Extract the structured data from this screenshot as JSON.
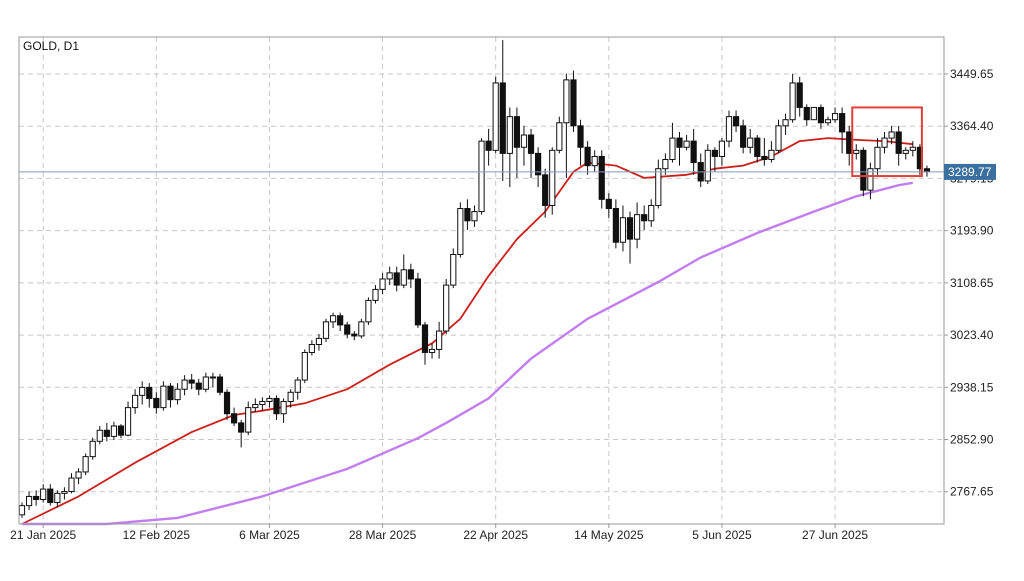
{
  "chart_data": {
    "type": "candlestick",
    "title": "GOLD, D1",
    "symbol": "GOLD",
    "timeframe": "D1",
    "grid": true,
    "y_ticks": [
      3449.65,
      3364.4,
      3279.15,
      3193.9,
      3108.65,
      3023.4,
      2938.15,
      2852.9,
      2767.65
    ],
    "y_tick_labels": [
      "3449.65",
      "3364.40",
      "3279.15",
      "3193.90",
      "3108.65",
      "3023.40",
      "2938.15",
      "2852.90",
      "2767.65"
    ],
    "ylim": [
      2715.0,
      3510.0
    ],
    "x_tick_labels": [
      {
        "label": "21 Jan 2025",
        "index": 3
      },
      {
        "label": "12 Feb 2025",
        "index": 19
      },
      {
        "label": "6 Mar 2025",
        "index": 35
      },
      {
        "label": "28 Mar 2025",
        "index": 51
      },
      {
        "label": "22 Apr 2025",
        "index": 67
      },
      {
        "label": "14 May 2025",
        "index": 83
      },
      {
        "label": "5 Jun 2025",
        "index": 99
      },
      {
        "label": "27 Jun 2025",
        "index": 115
      }
    ],
    "current_price": 3289.77,
    "current_price_label": "3289.77",
    "candles": [
      [
        2730,
        2745,
        2725,
        2750
      ],
      [
        2745,
        2760,
        2738,
        2768
      ],
      [
        2760,
        2755,
        2745,
        2770
      ],
      [
        2755,
        2772,
        2750,
        2780
      ],
      [
        2772,
        2750,
        2745,
        2780
      ],
      [
        2750,
        2765,
        2742,
        2770
      ],
      [
        2765,
        2768,
        2755,
        2775
      ],
      [
        2768,
        2790,
        2765,
        2798
      ],
      [
        2790,
        2800,
        2780,
        2806
      ],
      [
        2800,
        2825,
        2795,
        2830
      ],
      [
        2825,
        2850,
        2820,
        2856
      ],
      [
        2850,
        2868,
        2845,
        2875
      ],
      [
        2868,
        2858,
        2850,
        2880
      ],
      [
        2858,
        2875,
        2852,
        2882
      ],
      [
        2875,
        2860,
        2855,
        2878
      ],
      [
        2860,
        2905,
        2858,
        2915
      ],
      [
        2905,
        2925,
        2895,
        2935
      ],
      [
        2925,
        2938,
        2910,
        2948
      ],
      [
        2938,
        2920,
        2905,
        2945
      ],
      [
        2920,
        2905,
        2895,
        2930
      ],
      [
        2905,
        2940,
        2900,
        2948
      ],
      [
        2940,
        2918,
        2905,
        2945
      ],
      [
        2918,
        2935,
        2910,
        2945
      ],
      [
        2935,
        2950,
        2925,
        2958
      ],
      [
        2950,
        2945,
        2935,
        2960
      ],
      [
        2945,
        2935,
        2925,
        2952
      ],
      [
        2935,
        2955,
        2930,
        2962
      ],
      [
        2955,
        2955,
        2938,
        2962
      ],
      [
        2955,
        2930,
        2925,
        2960
      ],
      [
        2930,
        2895,
        2885,
        2935
      ],
      [
        2895,
        2880,
        2875,
        2905
      ],
      [
        2880,
        2865,
        2840,
        2885
      ],
      [
        2865,
        2905,
        2860,
        2915
      ],
      [
        2905,
        2910,
        2898,
        2920
      ],
      [
        2910,
        2915,
        2900,
        2922
      ],
      [
        2915,
        2920,
        2905,
        2925
      ],
      [
        2920,
        2895,
        2885,
        2925
      ],
      [
        2895,
        2915,
        2880,
        2920
      ],
      [
        2915,
        2930,
        2905,
        2935
      ],
      [
        2930,
        2950,
        2918,
        2955
      ],
      [
        2950,
        2995,
        2945,
        3000
      ],
      [
        2995,
        3008,
        2990,
        3015
      ],
      [
        3008,
        3018,
        2998,
        3025
      ],
      [
        3018,
        3045,
        3012,
        3050
      ],
      [
        3045,
        3055,
        3035,
        3060
      ],
      [
        3055,
        3040,
        3030,
        3060
      ],
      [
        3040,
        3025,
        3018,
        3045
      ],
      [
        3025,
        3022,
        3015,
        3030
      ],
      [
        3022,
        3045,
        3018,
        3050
      ],
      [
        3045,
        3080,
        3040,
        3085
      ],
      [
        3080,
        3098,
        3075,
        3105
      ],
      [
        3098,
        3115,
        3090,
        3125
      ],
      [
        3115,
        3125,
        3105,
        3135
      ],
      [
        3125,
        3105,
        3095,
        3135
      ],
      [
        3105,
        3130,
        3100,
        3155
      ],
      [
        3130,
        3115,
        3100,
        3140
      ],
      [
        3115,
        3040,
        3035,
        3125
      ],
      [
        3040,
        2995,
        2975,
        3045
      ],
      [
        2995,
        3000,
        2985,
        3010
      ],
      [
        3000,
        3030,
        2985,
        3045
      ],
      [
        3030,
        3105,
        3025,
        3115
      ],
      [
        3105,
        3155,
        3100,
        3165
      ],
      [
        3155,
        3230,
        3150,
        3240
      ],
      [
        3230,
        3210,
        3195,
        3245
      ],
      [
        3210,
        3225,
        3200,
        3235
      ],
      [
        3225,
        3340,
        3220,
        3345
      ],
      [
        3340,
        3325,
        3300,
        3360
      ],
      [
        3325,
        3435,
        3320,
        3445
      ],
      [
        3435,
        3320,
        3275,
        3505
      ],
      [
        3320,
        3380,
        3265,
        3395
      ],
      [
        3380,
        3330,
        3280,
        3395
      ],
      [
        3330,
        3350,
        3300,
        3365
      ],
      [
        3350,
        3320,
        3280,
        3360
      ],
      [
        3320,
        3285,
        3265,
        3330
      ],
      [
        3285,
        3235,
        3215,
        3295
      ],
      [
        3235,
        3325,
        3220,
        3330
      ],
      [
        3325,
        3370,
        3320,
        3380
      ],
      [
        3370,
        3440,
        3280,
        3450
      ],
      [
        3440,
        3365,
        3355,
        3455
      ],
      [
        3365,
        3330,
        3300,
        3375
      ],
      [
        3330,
        3300,
        3285,
        3340
      ],
      [
        3300,
        3315,
        3290,
        3325
      ],
      [
        3315,
        3245,
        3230,
        3325
      ],
      [
        3245,
        3230,
        3215,
        3255
      ],
      [
        3230,
        3175,
        3165,
        3245
      ],
      [
        3175,
        3215,
        3160,
        3235
      ],
      [
        3215,
        3180,
        3140,
        3225
      ],
      [
        3180,
        3220,
        3165,
        3240
      ],
      [
        3220,
        3210,
        3195,
        3235
      ],
      [
        3210,
        3235,
        3200,
        3245
      ],
      [
        3235,
        3295,
        3230,
        3310
      ],
      [
        3295,
        3310,
        3285,
        3320
      ],
      [
        3310,
        3345,
        3305,
        3370
      ],
      [
        3345,
        3330,
        3300,
        3355
      ],
      [
        3330,
        3340,
        3325,
        3350
      ],
      [
        3340,
        3305,
        3285,
        3360
      ],
      [
        3305,
        3275,
        3265,
        3320
      ],
      [
        3275,
        3325,
        3270,
        3335
      ],
      [
        3325,
        3315,
        3290,
        3330
      ],
      [
        3315,
        3340,
        3300,
        3345
      ],
      [
        3340,
        3380,
        3330,
        3390
      ],
      [
        3380,
        3365,
        3355,
        3390
      ],
      [
        3365,
        3330,
        3320,
        3375
      ],
      [
        3330,
        3345,
        3320,
        3360
      ],
      [
        3345,
        3315,
        3305,
        3350
      ],
      [
        3315,
        3310,
        3300,
        3345
      ],
      [
        3310,
        3325,
        3305,
        3340
      ],
      [
        3325,
        3365,
        3320,
        3375
      ],
      [
        3365,
        3375,
        3350,
        3385
      ],
      [
        3375,
        3435,
        3370,
        3450
      ],
      [
        3435,
        3395,
        3380,
        3445
      ],
      [
        3395,
        3375,
        3365,
        3400
      ],
      [
        3375,
        3395,
        3380,
        3390
      ],
      [
        3395,
        3370,
        3360,
        3400
      ],
      [
        3370,
        3375,
        3365,
        3380
      ],
      [
        3375,
        3385,
        3370,
        3395
      ],
      [
        3385,
        3355,
        3320,
        3395
      ],
      [
        3355,
        3320,
        3300,
        3365
      ],
      [
        3320,
        3325,
        3310,
        3335
      ],
      [
        3325,
        3260,
        3250,
        3330
      ],
      [
        3260,
        3295,
        3245,
        3305
      ],
      [
        3295,
        3330,
        3285,
        3345
      ],
      [
        3330,
        3345,
        3320,
        3355
      ],
      [
        3345,
        3355,
        3335,
        3365
      ],
      [
        3355,
        3320,
        3300,
        3365
      ],
      [
        3320,
        3325,
        3310,
        3330
      ],
      [
        3325,
        3330,
        3315,
        3340
      ],
      [
        3330,
        3295,
        3285,
        3335
      ],
      [
        3295,
        3290,
        3282,
        3300
      ]
    ],
    "indicators": [
      {
        "label": "",
        "color": "#cc1f1a",
        "points": [
          [
            0,
            2705
          ],
          [
            8,
            2760
          ],
          [
            16,
            2815
          ],
          [
            24,
            2865
          ],
          [
            30,
            2893
          ],
          [
            34,
            2900
          ],
          [
            40,
            2912
          ],
          [
            46,
            2935
          ],
          [
            52,
            2975
          ],
          [
            58,
            3010
          ],
          [
            62,
            3050
          ],
          [
            66,
            3120
          ],
          [
            70,
            3180
          ],
          [
            74,
            3225
          ],
          [
            78,
            3290
          ],
          [
            80,
            3305
          ],
          [
            84,
            3300
          ],
          [
            88,
            3280
          ],
          [
            94,
            3285
          ],
          [
            98,
            3295
          ],
          [
            102,
            3300
          ],
          [
            106,
            3315
          ],
          [
            110,
            3340
          ],
          [
            114,
            3345
          ],
          [
            118,
            3342
          ],
          [
            122,
            3340
          ],
          [
            126,
            3335
          ]
        ]
      },
      {
        "label": "",
        "color": "#c27ef0",
        "points": [
          [
            0,
            2640
          ],
          [
            6,
            2668
          ],
          [
            12,
            2696
          ],
          [
            22,
            2725
          ],
          [
            34,
            2760
          ],
          [
            46,
            2805
          ],
          [
            56,
            2855
          ],
          [
            60,
            2880
          ],
          [
            66,
            2920
          ],
          [
            72,
            2985
          ],
          [
            80,
            3050
          ],
          [
            90,
            3110
          ],
          [
            96,
            3150
          ],
          [
            104,
            3190
          ],
          [
            112,
            3225
          ],
          [
            118,
            3250
          ],
          [
            124,
            3268
          ],
          [
            126,
            3272
          ]
        ]
      }
    ],
    "highlight_box": {
      "color": "#e0403a",
      "from_index": 118,
      "to_index": 127,
      "from_price": 3283,
      "to_price": 3395
    }
  }
}
